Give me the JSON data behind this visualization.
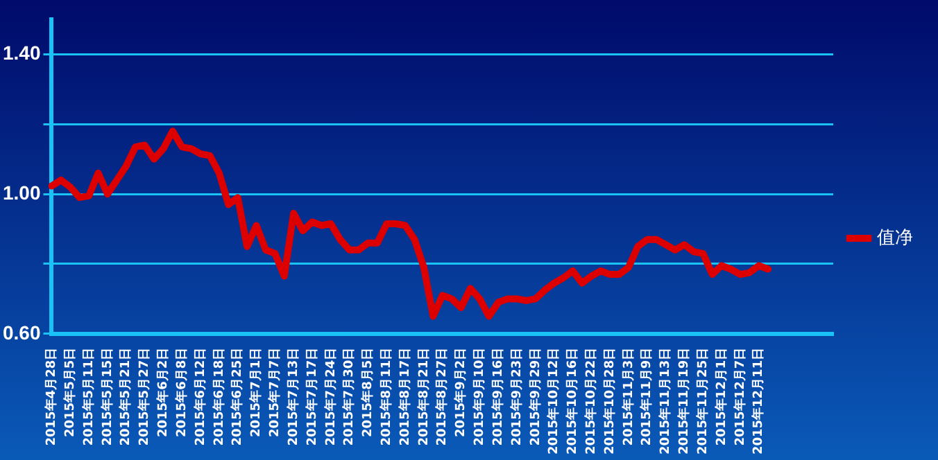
{
  "chart_data": {
    "type": "line",
    "categories": [
      "2015年4月28日",
      null,
      "2015年5月5日",
      null,
      "2015年5月11日",
      null,
      "2015年5月15日",
      null,
      "2015年5月21日",
      null,
      "2015年5月27日",
      null,
      "2015年6月2日",
      null,
      "2015年6月8日",
      null,
      "2015年6月12日",
      null,
      "2015年6月18日",
      null,
      "2015年6月25日",
      null,
      "2015年7月1日",
      null,
      "2015年7月7日",
      null,
      "2015年7月13日",
      null,
      "2015年7月17日",
      null,
      "2015年7月24日",
      null,
      "2015年7月30日",
      null,
      "2015年8月5日",
      null,
      "2015年8月11日",
      null,
      "2015年8月17日",
      null,
      "2015年8月21日",
      null,
      "2015年8月27日",
      null,
      "2015年9月2日",
      null,
      "2015年9月10日",
      null,
      "2015年9月16日",
      null,
      "2015年9月23日",
      null,
      "2015年9月29日",
      null,
      "2015年10月12日",
      null,
      "2015年10月16日",
      null,
      "2015年10月22日",
      null,
      "2015年10月28日",
      null,
      "2015年11月3日",
      null,
      "2015年11月9日",
      null,
      "2015年11月13日",
      null,
      "2015年11月19日",
      null,
      "2015年11月25日",
      null,
      "2015年12月1日",
      null,
      "2015年12月7日",
      null,
      "2015年12月11日",
      null,
      null,
      null,
      null,
      null,
      null,
      null,
      null
    ],
    "series": [
      {
        "name": "值净",
        "color": "#dd0000",
        "values": [
          1.023,
          1.04,
          1.02,
          0.99,
          0.995,
          1.06,
          1.0,
          1.04,
          1.08,
          1.135,
          1.14,
          1.1,
          1.13,
          1.18,
          1.135,
          1.13,
          1.115,
          1.11,
          1.06,
          0.97,
          0.99,
          0.85,
          0.91,
          0.84,
          0.83,
          0.765,
          0.945,
          0.895,
          0.92,
          0.91,
          0.915,
          0.87,
          0.84,
          0.84,
          0.86,
          0.86,
          0.915,
          0.915,
          0.91,
          0.87,
          0.79,
          0.65,
          0.71,
          0.7,
          0.675,
          0.73,
          0.7,
          0.65,
          0.69,
          0.7,
          0.7,
          0.695,
          0.7,
          0.725,
          0.745,
          0.76,
          0.78,
          0.745,
          0.765,
          0.78,
          0.77,
          0.77,
          0.79,
          0.85,
          0.87,
          0.87,
          0.855,
          0.84,
          0.855,
          0.835,
          0.83,
          0.77,
          0.795,
          0.785,
          0.77,
          0.775,
          0.795,
          0.785,
          null,
          null,
          null,
          null,
          null,
          null,
          null
        ]
      }
    ],
    "ylim": [
      0.6,
      1.5
    ],
    "yticks": [
      {
        "value": 0.6,
        "label": "0.60"
      },
      {
        "value": 0.8,
        "label": null
      },
      {
        "value": 1.0,
        "label": "1.00"
      },
      {
        "value": 1.2,
        "label": null
      },
      {
        "value": 1.4,
        "label": "1.40"
      }
    ],
    "grid": "y",
    "legend": "right",
    "marker": "none",
    "line_style": "solid"
  }
}
